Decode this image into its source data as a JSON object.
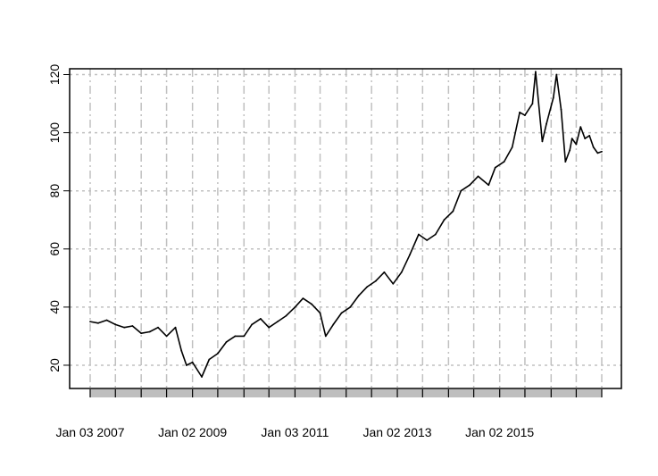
{
  "chart_data": {
    "type": "line",
    "title": "",
    "xlabel": "",
    "ylabel": "",
    "ylim": [
      12,
      122
    ],
    "xlim": [
      "2007-01-03",
      "2016-12-30"
    ],
    "grid": true,
    "y_ticks": [
      20,
      40,
      60,
      80,
      100,
      120
    ],
    "x_tick_labels": [
      {
        "date": "2007-01-03",
        "label": "Jan 03 2007"
      },
      {
        "date": "2009-01-02",
        "label": "Jan 02 2009"
      },
      {
        "date": "2011-01-03",
        "label": "Jan 03 2011"
      },
      {
        "date": "2013-01-02",
        "label": "Jan 02 2013"
      },
      {
        "date": "2015-01-02",
        "label": "Jan 02 2015"
      }
    ],
    "x_minor_ticks": [
      "2007-01-03",
      "2007-07-02",
      "2008-01-02",
      "2008-07-01",
      "2009-01-02",
      "2009-07-01",
      "2010-01-04",
      "2010-07-01",
      "2011-01-03",
      "2011-07-01",
      "2012-01-03",
      "2012-07-02",
      "2013-01-02",
      "2013-07-01",
      "2014-01-02",
      "2014-07-01",
      "2015-01-02",
      "2015-07-01",
      "2016-01-04",
      "2016-07-01",
      "2016-12-30"
    ],
    "series": [
      {
        "line_color": "#000000",
        "x": [
          "2007-01-03",
          "2007-03-01",
          "2007-05-01",
          "2007-07-02",
          "2007-09-04",
          "2007-11-01",
          "2008-01-02",
          "2008-03-03",
          "2008-05-01",
          "2008-07-01",
          "2008-09-02",
          "2008-10-15",
          "2008-11-20",
          "2009-01-02",
          "2009-03-09",
          "2009-05-01",
          "2009-07-01",
          "2009-09-01",
          "2009-11-02",
          "2010-01-04",
          "2010-03-01",
          "2010-05-03",
          "2010-07-01",
          "2010-09-01",
          "2010-11-01",
          "2011-01-03",
          "2011-03-01",
          "2011-05-02",
          "2011-07-01",
          "2011-08-10",
          "2011-10-03",
          "2011-12-01",
          "2012-02-01",
          "2012-04-02",
          "2012-06-01",
          "2012-08-01",
          "2012-10-01",
          "2012-12-03",
          "2013-02-01",
          "2013-04-01",
          "2013-06-03",
          "2013-08-01",
          "2013-10-01",
          "2013-12-02",
          "2014-02-03",
          "2014-04-01",
          "2014-06-02",
          "2014-08-01",
          "2014-10-15",
          "2014-12-01",
          "2015-02-02",
          "2015-04-01",
          "2015-05-25",
          "2015-07-01",
          "2015-08-24",
          "2015-09-15",
          "2015-11-02",
          "2015-12-01",
          "2016-01-20",
          "2016-02-11",
          "2016-03-15",
          "2016-04-15",
          "2016-05-16",
          "2016-06-01",
          "2016-07-01",
          "2016-08-01",
          "2016-09-01",
          "2016-10-03",
          "2016-11-01",
          "2016-12-01",
          "2016-12-30"
        ],
        "values": [
          35,
          34.5,
          35.5,
          34,
          33,
          33.5,
          31,
          31.5,
          33,
          30,
          33,
          25,
          20,
          21,
          16,
          22,
          24,
          28,
          30,
          30,
          34,
          36,
          33,
          35,
          37,
          40,
          43,
          41,
          38,
          30,
          34,
          38,
          40,
          44,
          47,
          49,
          52,
          48,
          52,
          58,
          65,
          63,
          65,
          70,
          73,
          80,
          82,
          85,
          82,
          88,
          90,
          95,
          107,
          106,
          110,
          121,
          97,
          103,
          112,
          120,
          108,
          90,
          94,
          98,
          96,
          102,
          98,
          99,
          95,
          93,
          93.5
        ]
      }
    ]
  }
}
